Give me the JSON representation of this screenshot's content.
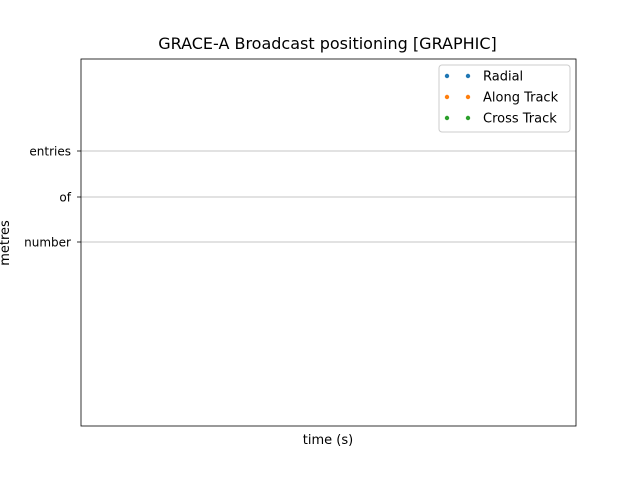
{
  "chart_data": {
    "type": "scatter",
    "title": "GRACE-A Broadcast positioning [GRAPHIC]",
    "xlabel": "time (s)",
    "ylabel": "metres",
    "yticks": [
      "entries",
      "of",
      "number"
    ],
    "grid": "horizontal",
    "legend_placement": "top-right",
    "series": [
      {
        "name": "Radial",
        "color": "#1f77b4",
        "values": []
      },
      {
        "name": "Along Track",
        "color": "#ff7f0e",
        "values": []
      },
      {
        "name": "Cross Track",
        "color": "#2ca02c",
        "values": []
      }
    ]
  }
}
